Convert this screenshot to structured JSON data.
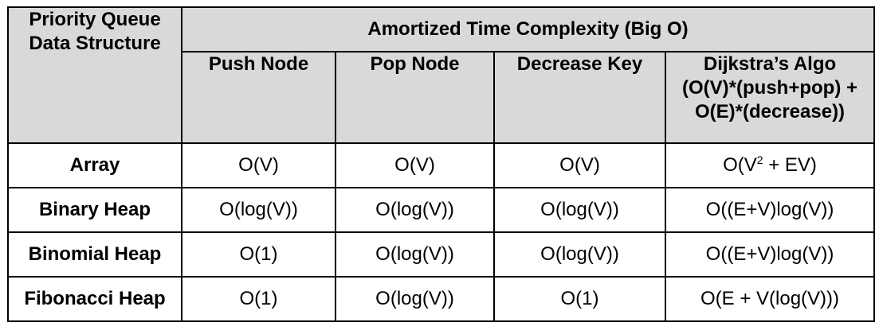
{
  "table": {
    "corner_header": [
      "Priority Queue",
      "Data Structure"
    ],
    "group_header": "Amortized Time Complexity (Big O)",
    "columns": [
      {
        "lines": [
          "Push Node"
        ]
      },
      {
        "lines": [
          "Pop Node"
        ]
      },
      {
        "lines": [
          "Decrease Key"
        ]
      },
      {
        "lines": [
          "Dijkstra’s Algo",
          "(O(V)*(push+pop) +",
          "O(E)*(decrease))"
        ]
      }
    ],
    "rows": [
      {
        "name": "Array",
        "push": "O(V)",
        "pop": "O(V)",
        "decrease": "O(V)",
        "dijkstra_base": "O(V",
        "dijkstra_sup": "2",
        "dijkstra_rest": " + EV)"
      },
      {
        "name": "Binary Heap",
        "push": "O(log(V))",
        "pop": "O(log(V))",
        "decrease": "O(log(V))",
        "dijkstra": "O((E+V)log(V))"
      },
      {
        "name": "Binomial Heap",
        "push": "O(1)",
        "pop": "O(log(V))",
        "decrease": "O(log(V))",
        "dijkstra": "O((E+V)log(V))"
      },
      {
        "name": "Fibonacci Heap",
        "push": "O(1)",
        "pop": "O(log(V))",
        "decrease": "O(1)",
        "dijkstra": "O(E + V(log(V)))"
      }
    ]
  }
}
